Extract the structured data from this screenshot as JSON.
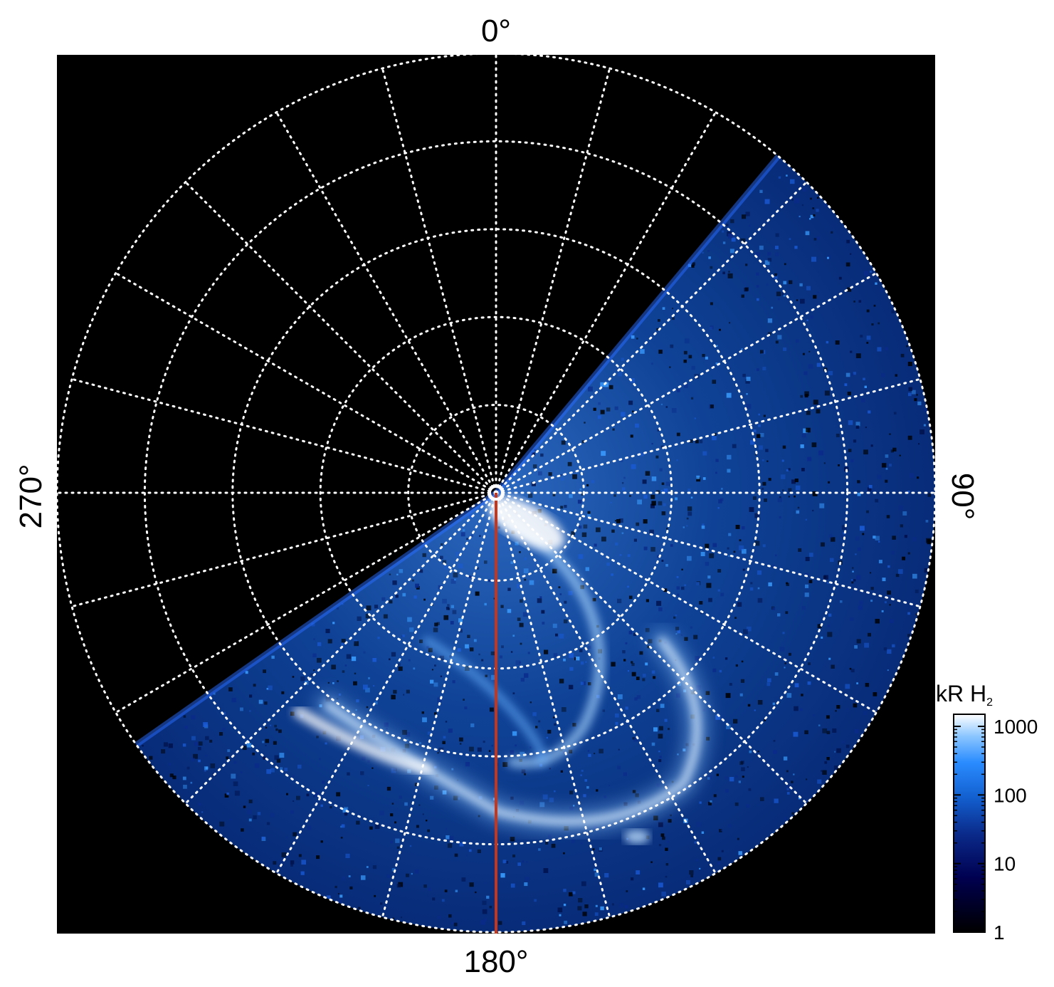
{
  "chart_data": {
    "type": "heatmap",
    "projection": "polar (north-up), azimuthal",
    "angle_labels": {
      "top": "0°",
      "right": "90°",
      "bottom": "180°",
      "left": "270°"
    },
    "grid": true,
    "grid_style": "dotted white",
    "radial_spokes_every_deg": 15,
    "concentric_rings": 5,
    "meridian_marker_deg": 180,
    "meridian_marker_color": "#c8361a",
    "colorbar": {
      "label_main": "kR H",
      "label_sub": "2",
      "scale": "log",
      "ticks": [
        "1000",
        "100",
        "10",
        "1"
      ],
      "tick_values": [
        1000,
        100,
        10,
        1
      ],
      "range": [
        1,
        1500
      ],
      "colormap": [
        "#000000",
        "#00003a",
        "#0a2a8a",
        "#1360d0",
        "#2a8cff",
        "#8cc6ff",
        "#ffffff"
      ]
    },
    "data_coverage_deg": [
      40,
      235
    ],
    "features": [
      {
        "name": "main auroral oval",
        "intensity_kR": 1000
      },
      {
        "name": "background emission",
        "intensity_kR": 30
      }
    ]
  }
}
